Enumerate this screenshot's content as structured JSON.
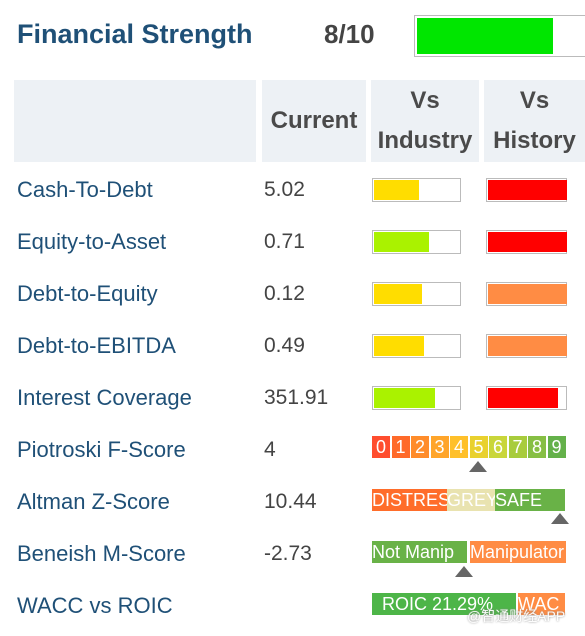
{
  "header": {
    "title": "Financial Strength",
    "score": "8/10",
    "score_fraction": 0.8,
    "score_color": "#00e600"
  },
  "columns": {
    "current": "Current",
    "vs_industry": [
      "Vs",
      "Industry"
    ],
    "vs_history": [
      "Vs",
      "History"
    ]
  },
  "colors": {
    "green": "#00e600",
    "lime": "#aaf200",
    "yellow": "#ffdd00",
    "orange": "#ff8c44",
    "red": "#ff0000"
  },
  "rows": [
    {
      "label": "Cash-To-Debt",
      "value": "5.02",
      "industry_fill": 0.52,
      "industry_color": "#ffdd00",
      "history_fill": 1.0,
      "history_color": "#ff0000"
    },
    {
      "label": "Equity-to-Asset",
      "value": "0.71",
      "industry_fill": 0.63,
      "industry_color": "#aaf200",
      "history_fill": 1.0,
      "history_color": "#ff0000"
    },
    {
      "label": "Debt-to-Equity",
      "value": "0.12",
      "industry_fill": 0.55,
      "industry_color": "#ffdd00",
      "history_fill": 1.0,
      "history_color": "#ff8c44"
    },
    {
      "label": "Debt-to-EBITDA",
      "value": "0.49",
      "industry_fill": 0.57,
      "industry_color": "#ffdd00",
      "history_fill": 1.0,
      "history_color": "#ff8c44"
    },
    {
      "label": "Interest Coverage",
      "value": "351.91",
      "industry_fill": 0.7,
      "industry_color": "#aaf200",
      "history_fill": 0.88,
      "history_color": "#ff0000"
    }
  ],
  "piotroski": {
    "label": "Piotroski F-Score",
    "value": "4",
    "scale": [
      "0",
      "1",
      "2",
      "3",
      "4",
      "5",
      "6",
      "7",
      "8",
      "9"
    ],
    "scale_colors": [
      "#ff4d2e",
      "#ff6a2a",
      "#ff8c2a",
      "#ffa52a",
      "#ffc02a",
      "#e9d12e",
      "#c9d63a",
      "#a8cc3c",
      "#86bf44",
      "#64b14a"
    ],
    "marker_index": 5
  },
  "altman": {
    "label": "Altman Z-Score",
    "value": "10.44",
    "zones": [
      "DISTRESS",
      "GREY",
      "SAFE"
    ]
  },
  "beneish": {
    "label": "Beneish M-Score",
    "value": "-2.73",
    "zones": [
      "Not Manip",
      "Manipulator"
    ]
  },
  "wacc": {
    "label": "WACC vs ROIC",
    "roic_text": "ROIC 21.29%",
    "wacc_text": "WAC"
  },
  "watermark": "@智通财经APP"
}
